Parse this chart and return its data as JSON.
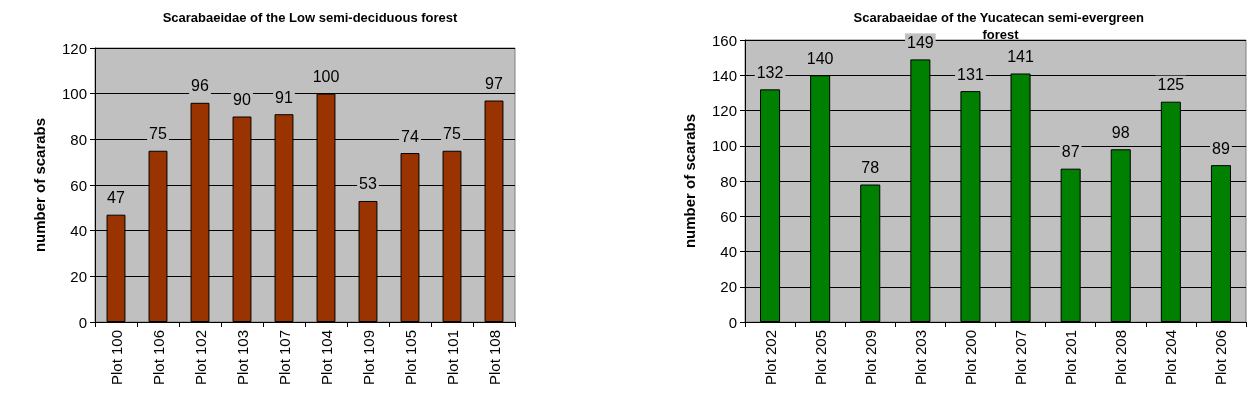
{
  "chart_data": [
    {
      "type": "bar",
      "title": "Scarabaeidae of the Low semi-deciduous forest",
      "ylabel": "number of scarabs",
      "categories": [
        "Plot 100",
        "Plot 106",
        "Plot 102",
        "Plot 103",
        "Plot 107",
        "Plot 104",
        "Plot 109",
        "Plot 105",
        "Plot 101",
        "Plot 108"
      ],
      "values": [
        47,
        75,
        96,
        90,
        91,
        100,
        53,
        74,
        75,
        97
      ],
      "color": "#993300",
      "ylim": [
        0,
        120
      ],
      "yticks": [
        0,
        20,
        40,
        60,
        80,
        100,
        120
      ],
      "grid": "y",
      "data_labels": true
    },
    {
      "type": "bar",
      "title": "Scarabaeidae of the Yucatecan semi-evergreen forest",
      "ylabel": "number of scarabs",
      "categories": [
        "Plot 202",
        "Plot 205",
        "Plot 209",
        "Plot 203",
        "Plot 200",
        "Plot 207",
        "Plot 201",
        "Plot 208",
        "Plot 204",
        "Plot 206"
      ],
      "values": [
        132,
        140,
        78,
        149,
        131,
        141,
        87,
        98,
        125,
        89
      ],
      "color": "#008000",
      "ylim": [
        0,
        160
      ],
      "yticks": [
        0,
        20,
        40,
        60,
        80,
        100,
        120,
        140,
        160
      ],
      "grid": "y",
      "data_labels": true
    }
  ]
}
